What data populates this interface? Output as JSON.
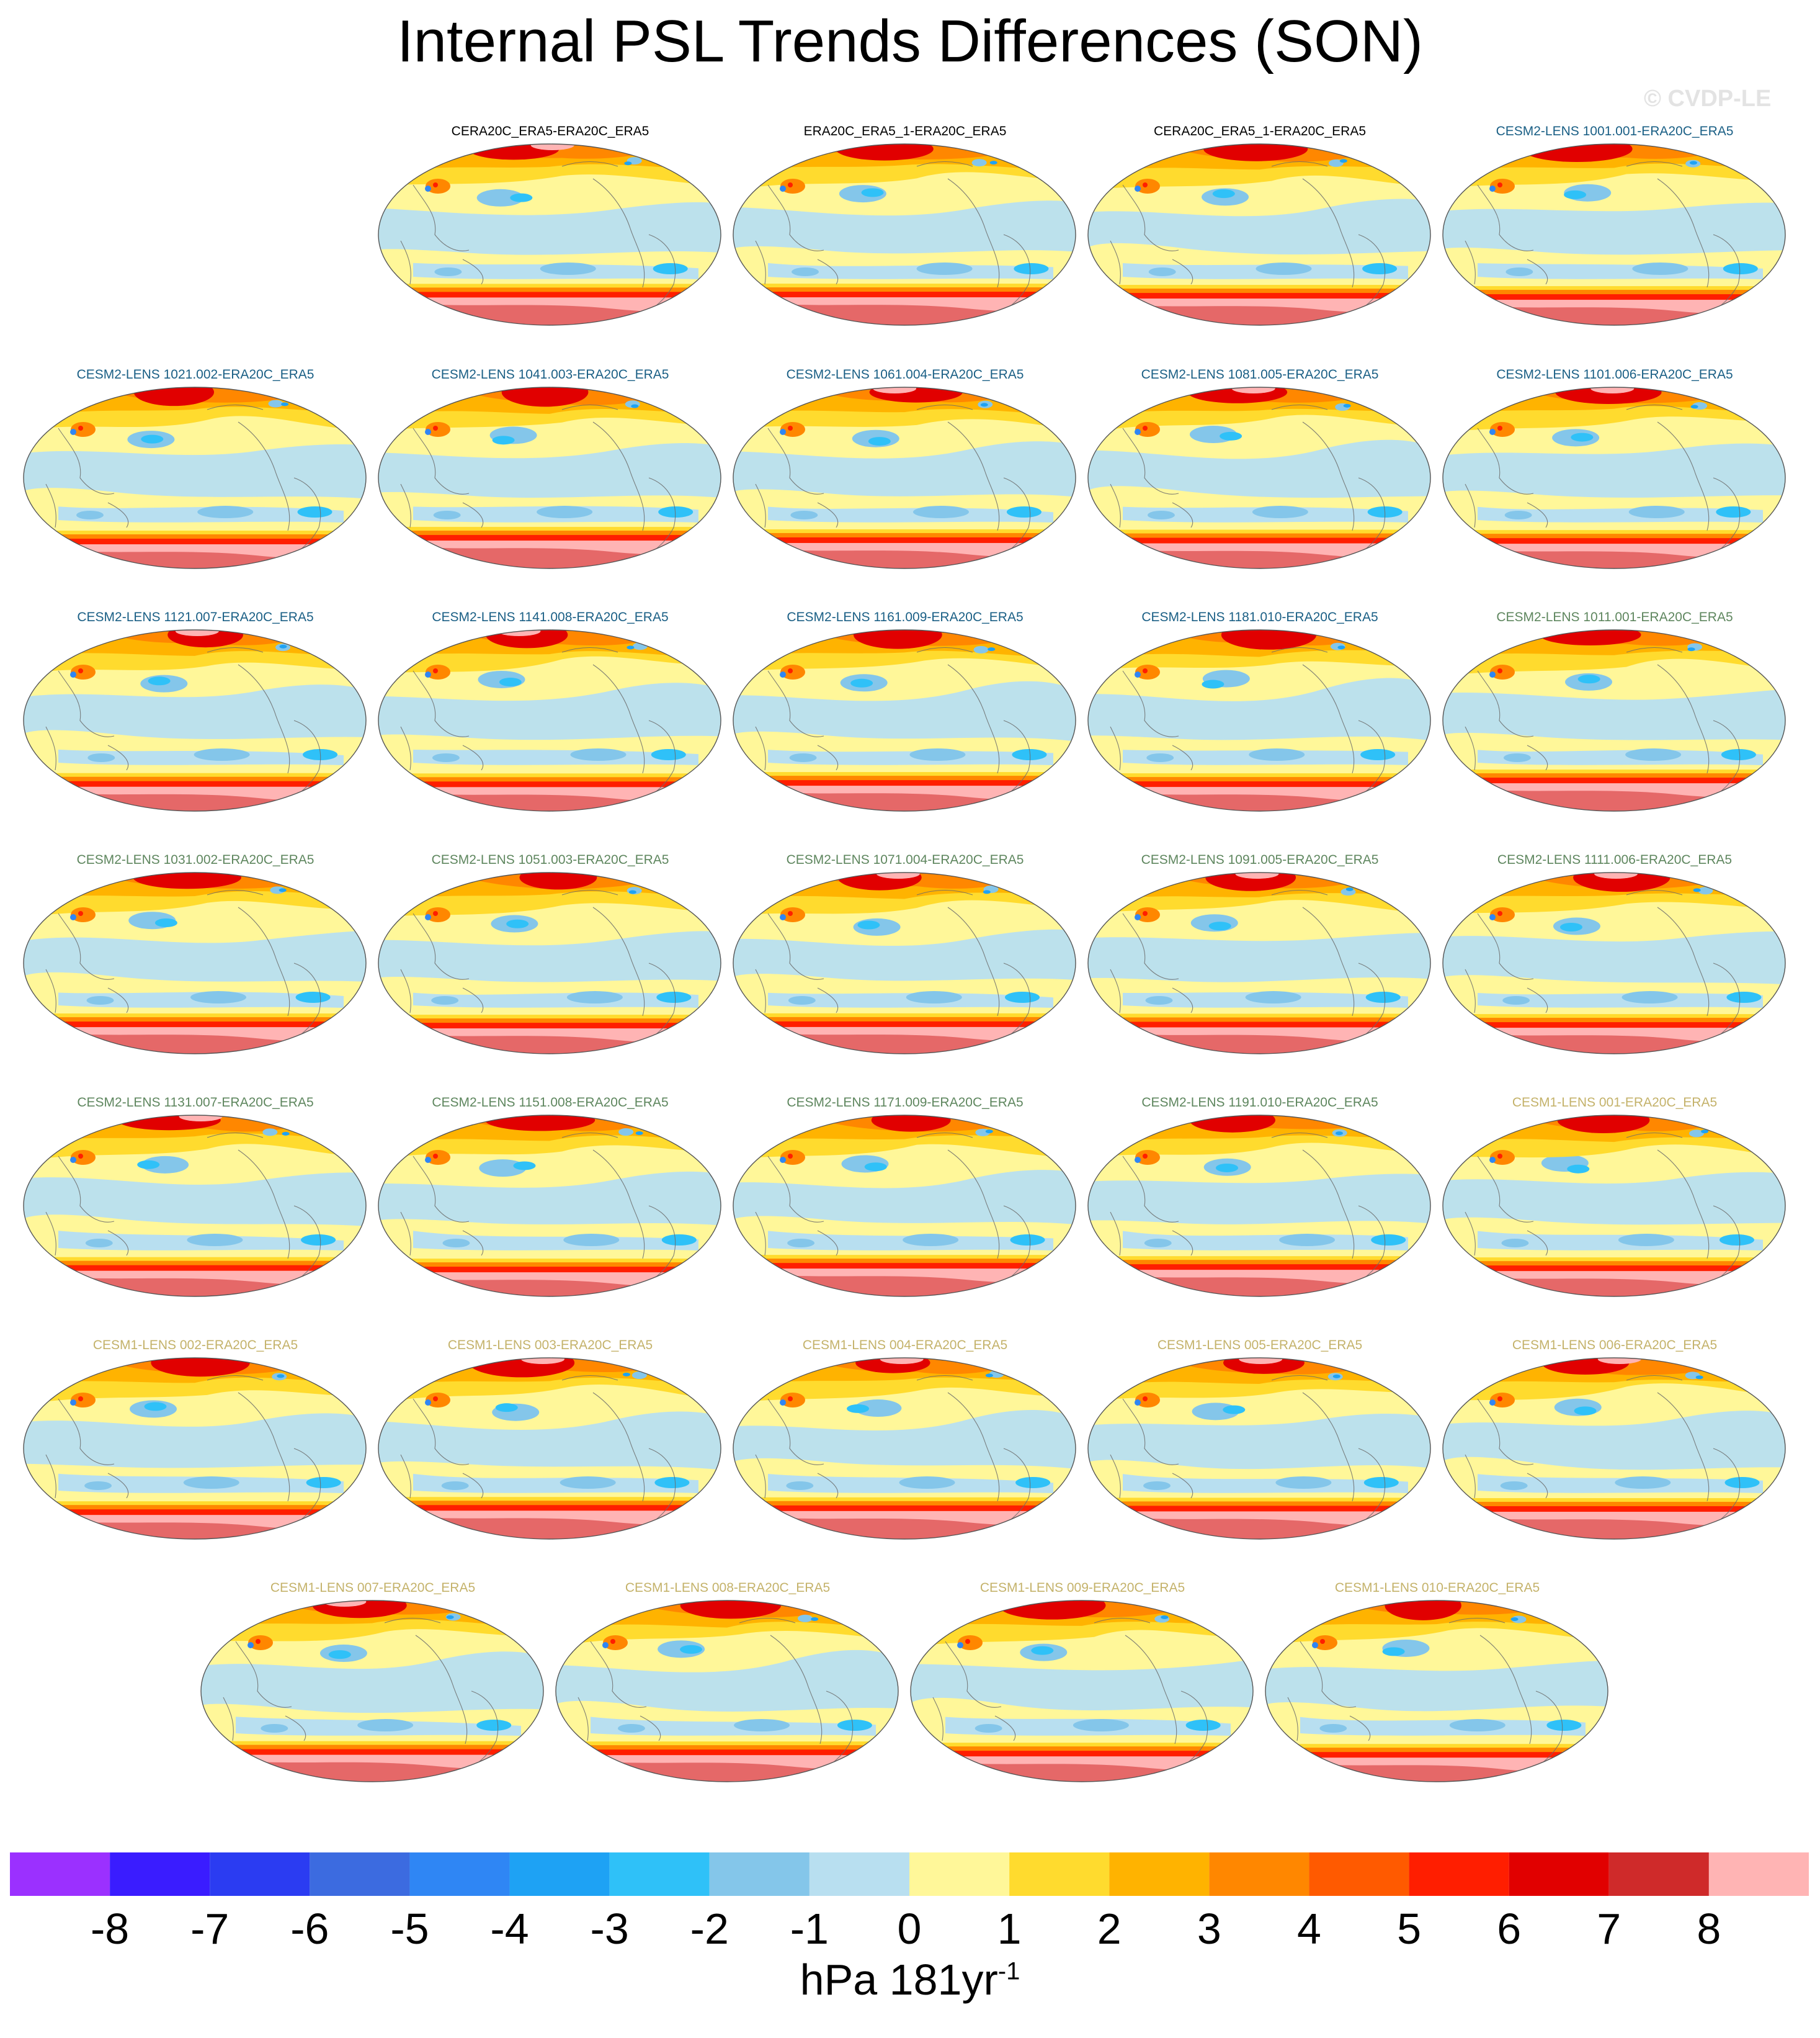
{
  "title": "Internal PSL Trends Differences (SON)",
  "watermark": "© CVDP-LE",
  "units": {
    "base": "hPa 181yr",
    "exponent": "-1"
  },
  "legend_colors": [
    "#9b30ff",
    "#3a1cff",
    "#2b3cf2",
    "#3c6be0",
    "#2f86f4",
    "#1ea2f4",
    "#2fc1f8",
    "#84c6ea",
    "#b8dff0",
    "#fff799",
    "#ffdb2e",
    "#ffb300",
    "#ff8700",
    "#ff5a00",
    "#ff1e00",
    "#e10000",
    "#cf2a2a",
    "#ffb4b4"
  ],
  "legend_labels": [
    "-8",
    "-7",
    "-6",
    "-5",
    "-4",
    "-3",
    "-2",
    "-1",
    "0",
    "1",
    "2",
    "3",
    "4",
    "5",
    "6",
    "7",
    "8"
  ],
  "groups": {
    "obs": {
      "color": "#000000"
    },
    "cesm2_a": {
      "color": "#1a5f85"
    },
    "cesm2_b": {
      "color": "#5e865e"
    },
    "cesm1": {
      "color": "#c4b26a"
    }
  },
  "panels": [
    {
      "label": "CERA20C_ERA5-ERA20C_ERA5",
      "group": "obs"
    },
    {
      "label": "ERA20C_ERA5_1-ERA20C_ERA5",
      "group": "obs"
    },
    {
      "label": "CERA20C_ERA5_1-ERA20C_ERA5",
      "group": "obs"
    },
    {
      "label": "CESM2-LENS 1001.001-ERA20C_ERA5",
      "group": "cesm2_a"
    },
    {
      "label": "CESM2-LENS 1021.002-ERA20C_ERA5",
      "group": "cesm2_a"
    },
    {
      "label": "CESM2-LENS 1041.003-ERA20C_ERA5",
      "group": "cesm2_a"
    },
    {
      "label": "CESM2-LENS 1061.004-ERA20C_ERA5",
      "group": "cesm2_a"
    },
    {
      "label": "CESM2-LENS 1081.005-ERA20C_ERA5",
      "group": "cesm2_a"
    },
    {
      "label": "CESM2-LENS 1101.006-ERA20C_ERA5",
      "group": "cesm2_a"
    },
    {
      "label": "CESM2-LENS 1121.007-ERA20C_ERA5",
      "group": "cesm2_a"
    },
    {
      "label": "CESM2-LENS 1141.008-ERA20C_ERA5",
      "group": "cesm2_a"
    },
    {
      "label": "CESM2-LENS 1161.009-ERA20C_ERA5",
      "group": "cesm2_a"
    },
    {
      "label": "CESM2-LENS 1181.010-ERA20C_ERA5",
      "group": "cesm2_a"
    },
    {
      "label": "CESM2-LENS 1011.001-ERA20C_ERA5",
      "group": "cesm2_b"
    },
    {
      "label": "CESM2-LENS 1031.002-ERA20C_ERA5",
      "group": "cesm2_b"
    },
    {
      "label": "CESM2-LENS 1051.003-ERA20C_ERA5",
      "group": "cesm2_b"
    },
    {
      "label": "CESM2-LENS 1071.004-ERA20C_ERA5",
      "group": "cesm2_b"
    },
    {
      "label": "CESM2-LENS 1091.005-ERA20C_ERA5",
      "group": "cesm2_b"
    },
    {
      "label": "CESM2-LENS 1111.006-ERA20C_ERA5",
      "group": "cesm2_b"
    },
    {
      "label": "CESM2-LENS 1131.007-ERA20C_ERA5",
      "group": "cesm2_b"
    },
    {
      "label": "CESM2-LENS 1151.008-ERA20C_ERA5",
      "group": "cesm2_b"
    },
    {
      "label": "CESM2-LENS 1171.009-ERA20C_ERA5",
      "group": "cesm2_b"
    },
    {
      "label": "CESM2-LENS 1191.010-ERA20C_ERA5",
      "group": "cesm2_b"
    },
    {
      "label": "CESM1-LENS 001-ERA20C_ERA5",
      "group": "cesm1"
    },
    {
      "label": "CESM1-LENS 002-ERA20C_ERA5",
      "group": "cesm1"
    },
    {
      "label": "CESM1-LENS 003-ERA20C_ERA5",
      "group": "cesm1"
    },
    {
      "label": "CESM1-LENS 004-ERA20C_ERA5",
      "group": "cesm1"
    },
    {
      "label": "CESM1-LENS 005-ERA20C_ERA5",
      "group": "cesm1"
    },
    {
      "label": "CESM1-LENS 006-ERA20C_ERA5",
      "group": "cesm1"
    },
    {
      "label": "CESM1-LENS 007-ERA20C_ERA5",
      "group": "cesm1"
    },
    {
      "label": "CESM1-LENS 008-ERA20C_ERA5",
      "group": "cesm1"
    },
    {
      "label": "CESM1-LENS 009-ERA20C_ERA5",
      "group": "cesm1"
    },
    {
      "label": "CESM1-LENS 010-ERA20C_ERA5",
      "group": "cesm1"
    }
  ]
}
